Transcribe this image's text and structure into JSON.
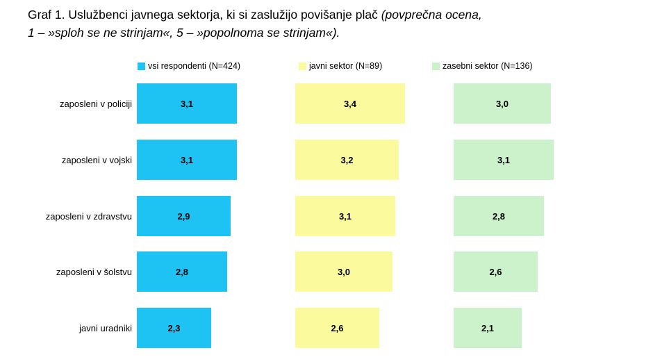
{
  "title": {
    "line1_regular": "Graf 1. Uslužbenci javnega sektorja, ki si zaslužijo povišanje plač ",
    "line1_italic": "(povprečna ocena,",
    "line2_italic": "1 – »sploh se ne strinjam«, 5 – »popolnoma se strinjam«)."
  },
  "legend": {
    "items": [
      {
        "label": "vsi respondenti (N=424)",
        "color": "#1fc3f3"
      },
      {
        "label": "javni sektor (N=89)",
        "color": "#fbfa9d"
      },
      {
        "label": "zasebni sektor (N=136)",
        "color": "#ccf2cb"
      }
    ]
  },
  "chart_data": {
    "type": "bar",
    "orientation": "horizontal",
    "title": "Graf 1. Uslužbenci javnega sektorja, ki si zaslužijo povišanje plač (povprečna ocena, 1 – »sploh se ne strinjam«, 5 – »popolnoma se strinjam«).",
    "categories": [
      "zaposleni v policiji",
      "zaposleni v vojski",
      "zaposleni v zdravstvu",
      "zaposleni v šolstvu",
      "javni uradniki"
    ],
    "series": [
      {
        "name": "vsi respondenti (N=424)",
        "color": "#1fc3f3",
        "values": [
          3.1,
          3.1,
          2.9,
          2.8,
          2.3
        ]
      },
      {
        "name": "javni sektor (N=89)",
        "color": "#fbfa9d",
        "values": [
          3.4,
          3.2,
          3.1,
          3.0,
          2.6
        ]
      },
      {
        "name": "zasebni sektor (N=136)",
        "color": "#ccf2cb",
        "values": [
          3.0,
          3.1,
          2.8,
          2.6,
          2.1
        ]
      }
    ],
    "value_range": [
      0,
      5
    ],
    "decimal_separator": ",",
    "value_labels_shown": true,
    "legend_position": "top",
    "grid": false,
    "axis_labels_shown": false
  }
}
